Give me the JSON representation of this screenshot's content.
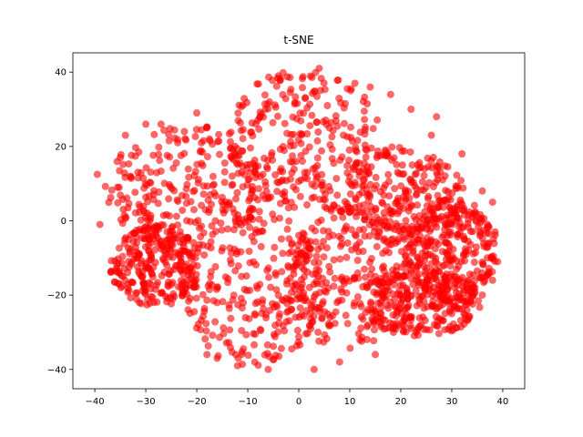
{
  "chart_data": {
    "type": "scatter",
    "title": "t-SNE",
    "xlabel": "",
    "ylabel": "",
    "xlim": [
      -44.3,
      44.3
    ],
    "ylim": [
      -45.2,
      45.2
    ],
    "x_ticks": [
      -40,
      -30,
      -20,
      -10,
      0,
      10,
      20,
      30,
      40
    ],
    "y_ticks": [
      -40,
      -20,
      0,
      20,
      40
    ],
    "grid": false,
    "legend": "none",
    "marker_color": "#ff0000",
    "marker_alpha": 0.6,
    "clusters": [
      {
        "cx": 1,
        "cy": 22,
        "rx": 15,
        "ry": 19
      },
      {
        "cx": -22,
        "cy": 9,
        "rx": 16,
        "ry": 17
      },
      {
        "cx": 20,
        "cy": 6,
        "rx": 13,
        "ry": 14
      },
      {
        "cx": 30,
        "cy": -8,
        "rx": 9,
        "ry": 14
      },
      {
        "cx": -9,
        "cy": -18,
        "rx": 14,
        "ry": 21
      },
      {
        "cx": 10,
        "cy": -15,
        "rx": 13,
        "ry": 20
      },
      {
        "cx": -28,
        "cy": -12,
        "rx": 9,
        "ry": 11
      },
      {
        "cx": 24,
        "cy": -22,
        "rx": 12,
        "ry": 9
      }
    ],
    "outliers": [
      [
        -39,
        -1
      ],
      [
        -39.5,
        12.5
      ],
      [
        -35,
        17
      ],
      [
        -33,
        -7.5
      ],
      [
        -34,
        23
      ],
      [
        -30,
        26
      ],
      [
        -18,
        -36
      ],
      [
        -16,
        -37
      ],
      [
        -12,
        -39
      ],
      [
        -6,
        -40
      ],
      [
        3,
        -40
      ],
      [
        8,
        -38
      ],
      [
        15,
        -36
      ],
      [
        22,
        -29
      ],
      [
        24,
        -28
      ],
      [
        27,
        28
      ],
      [
        26,
        23
      ],
      [
        32,
        18
      ],
      [
        36,
        8
      ],
      [
        38,
        5
      ],
      [
        38.5,
        -3
      ],
      [
        39,
        -11
      ],
      [
        38,
        -16
      ],
      [
        36,
        -20
      ],
      [
        33,
        -24
      ],
      [
        30,
        -25
      ],
      [
        18,
        34
      ],
      [
        14,
        36
      ],
      [
        22,
        30
      ],
      [
        -20,
        29
      ],
      [
        -27,
        26
      ],
      [
        4,
        41
      ],
      [
        -4,
        39
      ],
      [
        11,
        37
      ]
    ]
  }
}
